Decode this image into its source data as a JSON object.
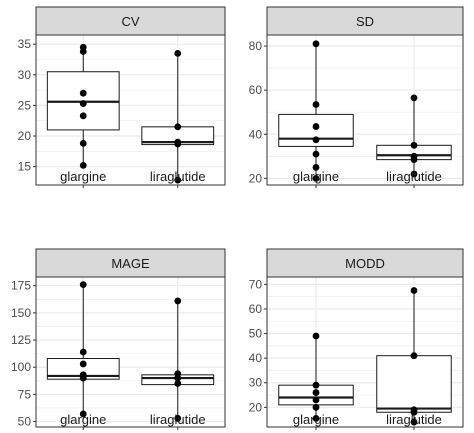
{
  "chart_data": [
    {
      "type": "boxplot",
      "title": "CV",
      "categories": [
        "glargine",
        "liraglutide"
      ],
      "ylim": [
        12,
        36.5
      ],
      "yticks": [
        15,
        20,
        25,
        30,
        35
      ],
      "boxes": [
        {
          "name": "glargine",
          "min": 15.2,
          "q1": 21.0,
          "median": 25.6,
          "q3": 30.5,
          "max": 34.5,
          "points": [
            34.5,
            33.8,
            27.0,
            25.3,
            23.3,
            18.8,
            15.2
          ]
        },
        {
          "name": "liraglutide",
          "min": 12.8,
          "q1": 18.6,
          "median": 19.0,
          "q3": 21.5,
          "max": 33.5,
          "points": [
            33.5,
            21.5,
            19.0,
            18.7,
            12.8
          ]
        }
      ]
    },
    {
      "type": "boxplot",
      "title": "SD",
      "categories": [
        "glargine",
        "liraglutide"
      ],
      "ylim": [
        17,
        85
      ],
      "yticks": [
        20,
        40,
        60,
        80
      ],
      "boxes": [
        {
          "name": "glargine",
          "min": 20.0,
          "q1": 34.5,
          "median": 38.0,
          "q3": 49.0,
          "max": 81.0,
          "points": [
            81.0,
            53.5,
            43.5,
            37.5,
            31.0,
            25.0,
            20.0
          ]
        },
        {
          "name": "liraglutide",
          "min": 22.0,
          "q1": 28.5,
          "median": 30.5,
          "q3": 35.0,
          "max": 56.5,
          "points": [
            56.5,
            35.0,
            30.0,
            28.5,
            22.0
          ]
        }
      ]
    },
    {
      "type": "boxplot",
      "title": "MAGE",
      "categories": [
        "glargine",
        "liraglutide"
      ],
      "ylim": [
        45,
        183
      ],
      "yticks": [
        50,
        75,
        100,
        125,
        150,
        175
      ],
      "boxes": [
        {
          "name": "glargine",
          "min": 57.0,
          "q1": 89.0,
          "median": 92.0,
          "q3": 108.0,
          "max": 176.0,
          "points": [
            176.0,
            114.0,
            103.0,
            93.0,
            90.0,
            57.0
          ]
        },
        {
          "name": "liraglutide",
          "min": 53.0,
          "q1": 84.0,
          "median": 90.0,
          "q3": 93.0,
          "max": 161.0,
          "points": [
            161.0,
            94.0,
            90.0,
            85.0,
            53.0
          ]
        }
      ]
    },
    {
      "type": "boxplot",
      "title": "MODD",
      "categories": [
        "glargine",
        "liraglutide"
      ],
      "ylim": [
        12,
        73
      ],
      "yticks": [
        20,
        30,
        40,
        50,
        60,
        70
      ],
      "boxes": [
        {
          "name": "glargine",
          "min": 15.5,
          "q1": 21.0,
          "median": 24.0,
          "q3": 29.0,
          "max": 49.0,
          "points": [
            49.0,
            29.0,
            26.0,
            23.0,
            20.0,
            15.5
          ]
        },
        {
          "name": "liraglutide",
          "min": 14.0,
          "q1": 18.0,
          "median": 19.5,
          "q3": 41.0,
          "max": 67.5,
          "points": [
            67.5,
            41.0,
            19.0,
            18.0,
            14.0
          ]
        }
      ]
    }
  ],
  "colors": {
    "strip_fill": "#d9d9d9",
    "strip_border": "#333333",
    "panel_border": "#333333",
    "grid": "#ebebeb",
    "box_stroke": "#1a1a1a",
    "point": "#000000"
  }
}
